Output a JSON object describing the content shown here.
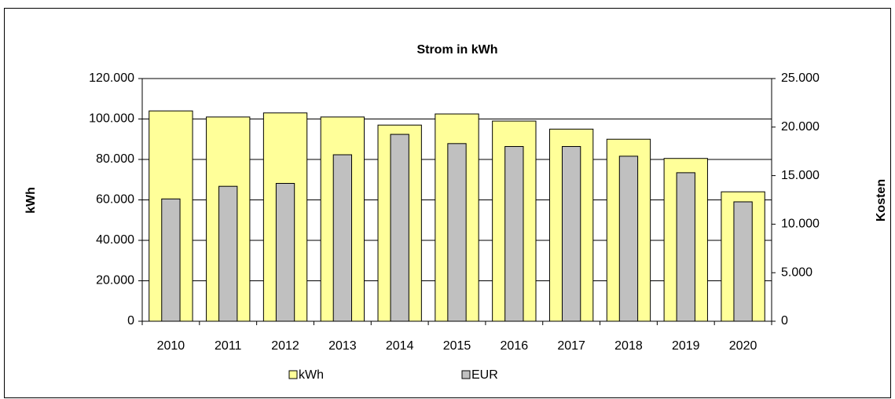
{
  "chart_data": {
    "type": "bar",
    "title": "Strom in kWh",
    "ylabel": "kWh",
    "y2label": "Kosten",
    "categories": [
      "2010",
      "2011",
      "2012",
      "2013",
      "2014",
      "2015",
      "2016",
      "2017",
      "2018",
      "2019",
      "2020"
    ],
    "series": [
      {
        "name": "kWh",
        "color": "#ffff99",
        "values": [
          104000,
          101000,
          103000,
          101000,
          97000,
          102500,
          99000,
          95000,
          90000,
          80500,
          64000
        ]
      },
      {
        "name": "EUR",
        "color": "#c0c0c0",
        "axis": "y2",
        "values": [
          12600,
          13900,
          14200,
          17150,
          19250,
          18300,
          18000,
          18000,
          17000,
          15300,
          12300
        ]
      }
    ],
    "ylim": [
      0,
      120000
    ],
    "yticks": [
      0,
      {
        "value": 20000,
        "label": "20.000"
      },
      {
        "value": 40000,
        "label": "40.000"
      },
      {
        "value": 60000,
        "label": "60.000"
      },
      {
        "value": 80000,
        "label": "80.000"
      },
      {
        "value": 100000,
        "label": "100.000"
      },
      {
        "value": 120000,
        "label": "120.000"
      }
    ],
    "y2lim": [
      0,
      25000
    ],
    "y2ticks": [
      0,
      {
        "value": 5000,
        "label": "5.000"
      },
      {
        "value": 10000,
        "label": "10.000"
      },
      {
        "value": 15000,
        "label": "15.000"
      },
      {
        "value": 20000,
        "label": "20.000"
      },
      {
        "value": 25000,
        "label": "25.000"
      }
    ],
    "grid": true,
    "legend": "bottom"
  }
}
